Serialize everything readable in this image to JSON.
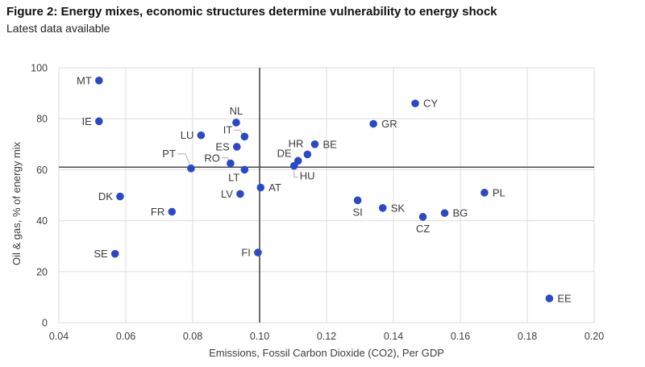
{
  "figure": {
    "title": "Figure 2: Energy mixes, economic structures determine vulnerability to energy shock",
    "subtitle": "Latest data available"
  },
  "chart_data": {
    "type": "scatter",
    "title": "Figure 2: Energy mixes, economic structures determine vulnerability to energy shock",
    "subtitle": "Latest data available",
    "xlabel": "Emissions, Fossil Carbon Dioxide (CO2), Per GDP",
    "ylabel": "Oil & gas, % of energy mix",
    "xlim": [
      0.04,
      0.2
    ],
    "ylim": [
      0,
      100
    ],
    "x_ticks": [
      0.04,
      0.06,
      0.08,
      0.1,
      0.12,
      0.14,
      0.16,
      0.18,
      0.2
    ],
    "y_ticks": [
      0,
      20,
      40,
      60,
      80,
      100
    ],
    "grid": true,
    "legend": "none",
    "reference_lines": {
      "x": 0.1,
      "y": 61
    },
    "point_color": "#2b49c6",
    "grid_color": "#dedede",
    "reference_line_color": "#4a4a4a",
    "leader_color": "#b9b9b9",
    "points": [
      {
        "code": "MT",
        "x": 0.052,
        "y": 95,
        "label_side": "left"
      },
      {
        "code": "CY",
        "x": 0.1465,
        "y": 86,
        "label_side": "right"
      },
      {
        "code": "IE",
        "x": 0.052,
        "y": 79,
        "label_side": "left"
      },
      {
        "code": "NL",
        "x": 0.093,
        "y": 78.5,
        "label_side": "above"
      },
      {
        "code": "GR",
        "x": 0.134,
        "y": 78,
        "label_side": "right"
      },
      {
        "code": "LU",
        "x": 0.0825,
        "y": 73.5,
        "label_side": "left"
      },
      {
        "code": "IT",
        "x": 0.0955,
        "y": 73,
        "label_side": "custom",
        "label_offset": [
          -15,
          -4
        ],
        "anchor": "end",
        "leader": [
          [
            -13,
            -8
          ],
          [
            -6,
            -8
          ],
          [
            -2,
            -3
          ]
        ]
      },
      {
        "code": "BE",
        "x": 0.1165,
        "y": 70,
        "label_side": "right"
      },
      {
        "code": "ES",
        "x": 0.0932,
        "y": 69,
        "label_side": "left"
      },
      {
        "code": "HR",
        "x": 0.1143,
        "y": 66,
        "label_side": "custom",
        "label_offset": [
          -5,
          -9
        ],
        "anchor": "end"
      },
      {
        "code": "DE",
        "x": 0.1115,
        "y": 63.5,
        "label_side": "custom",
        "label_offset": [
          -8,
          -5
        ],
        "anchor": "end"
      },
      {
        "code": "RO",
        "x": 0.0913,
        "y": 62.5,
        "label_side": "custom",
        "label_offset": [
          -13,
          -2
        ],
        "anchor": "end",
        "leader": [
          [
            -11,
            -7
          ],
          [
            -4,
            -7
          ],
          [
            -1,
            -2
          ]
        ]
      },
      {
        "code": "HU",
        "x": 0.1103,
        "y": 61.5,
        "label_side": "custom",
        "label_offset": [
          7,
          17
        ],
        "anchor": "start",
        "leader": [
          [
            0,
            6
          ],
          [
            0,
            14
          ],
          [
            5,
            14
          ]
        ]
      },
      {
        "code": "PT",
        "x": 0.0795,
        "y": 60.5,
        "label_side": "custom",
        "label_offset": [
          -19,
          -14
        ],
        "anchor": "end",
        "leader": [
          [
            -17,
            -18
          ],
          [
            -7,
            -18
          ],
          [
            -1,
            -4
          ]
        ]
      },
      {
        "code": "LT",
        "x": 0.0955,
        "y": 60,
        "label_side": "custom",
        "label_offset": [
          -6,
          14
        ],
        "anchor": "end"
      },
      {
        "code": "AT",
        "x": 0.1003,
        "y": 53,
        "label_side": "right"
      },
      {
        "code": "PL",
        "x": 0.1672,
        "y": 51,
        "label_side": "right"
      },
      {
        "code": "LV",
        "x": 0.0942,
        "y": 50.5,
        "label_side": "left"
      },
      {
        "code": "DK",
        "x": 0.0583,
        "y": 49.5,
        "label_side": "left"
      },
      {
        "code": "SI",
        "x": 0.1293,
        "y": 48,
        "label_side": "below"
      },
      {
        "code": "SK",
        "x": 0.1368,
        "y": 45,
        "label_side": "right"
      },
      {
        "code": "FR",
        "x": 0.0738,
        "y": 43.5,
        "label_side": "left"
      },
      {
        "code": "BG",
        "x": 0.1553,
        "y": 43,
        "label_side": "right"
      },
      {
        "code": "CZ",
        "x": 0.1488,
        "y": 41.5,
        "label_side": "below"
      },
      {
        "code": "FI",
        "x": 0.0995,
        "y": 27.5,
        "label_side": "left"
      },
      {
        "code": "SE",
        "x": 0.0568,
        "y": 27,
        "label_side": "left"
      },
      {
        "code": "EE",
        "x": 0.1866,
        "y": 9.5,
        "label_side": "right"
      }
    ]
  }
}
